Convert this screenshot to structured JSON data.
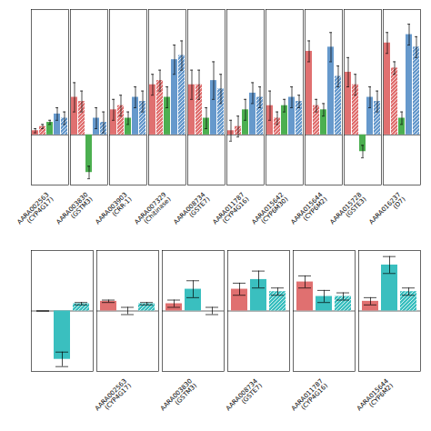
{
  "chart_data": [
    {
      "type": "bar",
      "categories": [
        "AARA002563\n(CYP4G17)",
        "AARA003830\n(GSTM3)",
        "AARA003903\n(CRR-1)",
        "AARA007329\n(Chitinase)",
        "AARA008734\n(GSTE7)",
        "AARA011787\n(CYP4G16)",
        "AARA015642\n(CYP6M30)",
        "AARA015644\n(CYP6M2)",
        "AARA015728\n(GSTE3)",
        "AARA016237\n(D7)"
      ],
      "series": [
        {
          "color": "#E07070",
          "values": [
            1,
            9,
            6,
            12,
            12,
            1,
            7,
            20,
            15,
            22
          ],
          "errors": [
            0.5,
            3.5,
            2.5,
            2.5,
            3.5,
            2.5,
            3.5,
            2.5,
            3.5,
            2.5
          ]
        },
        {
          "color": "#E07070",
          "values": [
            2,
            8,
            7,
            13,
            12,
            2,
            4,
            7,
            12,
            16
          ],
          "errors": [
            0.5,
            2.5,
            2.5,
            2.5,
            3.5,
            2.5,
            1.5,
            1.5,
            2.5,
            1.5
          ]
        },
        {
          "color": "#4CAF50",
          "values": [
            3,
            -9,
            4,
            9,
            4,
            6,
            7,
            6,
            -4,
            4
          ],
          "errors": [
            0.5,
            1.5,
            1.5,
            2.5,
            2.5,
            2.5,
            1.5,
            1.5,
            1.5,
            1.5
          ]
        },
        {
          "color": "#6699CC",
          "values": [
            5,
            4,
            9,
            18,
            13,
            10,
            9,
            21,
            9,
            24
          ],
          "errors": [
            1.5,
            2.5,
            2.5,
            3.5,
            4.5,
            2.5,
            2.5,
            3.5,
            2.5,
            2.5
          ]
        },
        {
          "color": "#6699CC",
          "values": [
            4,
            3,
            8,
            19,
            11,
            9,
            8,
            14,
            8,
            21
          ],
          "errors": [
            1.5,
            2.5,
            2.5,
            3.5,
            3.5,
            2.5,
            1.5,
            2.5,
            2.5,
            2.5
          ]
        }
      ],
      "ylim": [
        -12,
        30
      ],
      "tick_labels": "x"
    },
    {
      "type": "bar",
      "categories": [
        null,
        "AARA002563\n(CYP4G17)",
        "AARA003830\n(GSTM3)",
        "AARA008734\n(GSTE7)",
        "AARA011787\n(CYP4G16)",
        "AARA015644\n(CYP6M2)"
      ],
      "series": [
        {
          "color": "#E07070",
          "values": [
            0,
            4,
            3,
            9,
            12,
            4
          ],
          "errors": [
            0,
            0.5,
            1.5,
            2.5,
            2.5,
            1.5
          ]
        },
        {
          "color": "#3ABFBF",
          "values": [
            -20,
            0,
            9,
            13,
            6,
            19
          ],
          "errors": [
            3,
            1.5,
            3.5,
            3.5,
            2.5,
            3.5
          ]
        },
        {
          "color": "#3ABFBF",
          "values": [
            3,
            3,
            0,
            8,
            6,
            8
          ],
          "errors": [
            0.5,
            0.5,
            1.5,
            1.5,
            1.5,
            1.5
          ]
        }
      ],
      "ylim": [
        -25,
        25
      ],
      "tick_labels": "x"
    }
  ]
}
